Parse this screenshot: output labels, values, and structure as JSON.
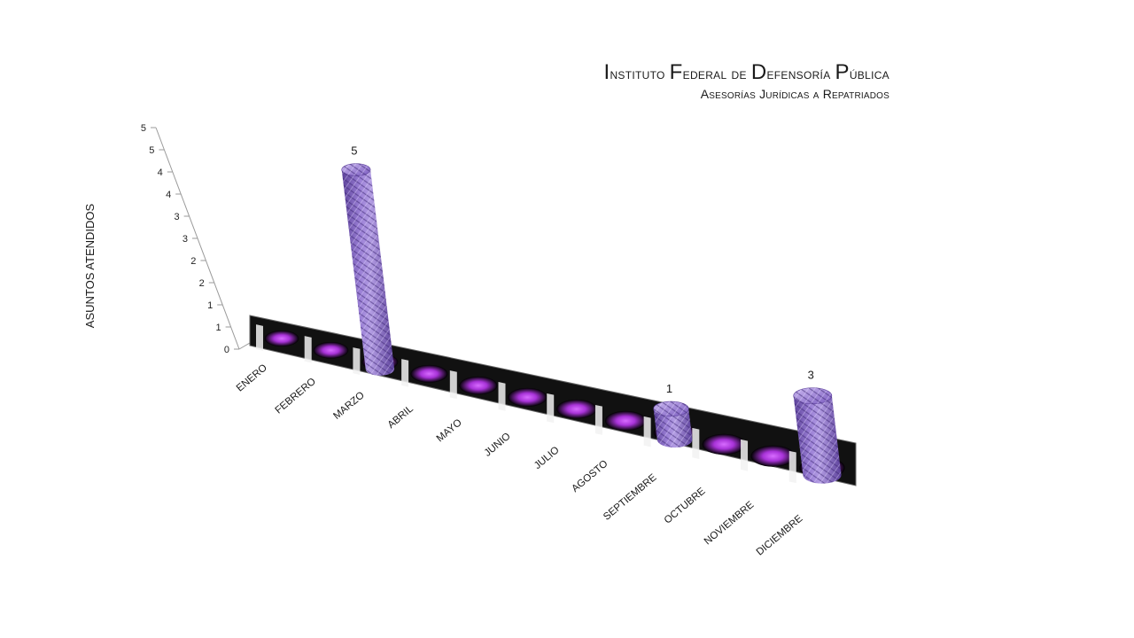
{
  "chart_data": {
    "type": "bar",
    "title": "Instituto Federal de Defensoría Pública",
    "subtitle": "Asesorías Jurídicas a Repatriados",
    "ylabel": "ASUNTOS ATENDIDOS",
    "xlabel": "",
    "categories": [
      "ENERO",
      "FEBRERO",
      "MARZO",
      "ABRIL",
      "MAYO",
      "JUNIO",
      "JULIO",
      "AGOSTO",
      "SEPTIEMBRE",
      "OCTUBRE",
      "NOVIEMBRE",
      "DICIEMBRE"
    ],
    "values": [
      0,
      0,
      5,
      0,
      0,
      0,
      0,
      0,
      1,
      0,
      0,
      3
    ],
    "data_labels": [
      "",
      "",
      "5",
      "",
      "",
      "",
      "",
      "",
      "1",
      "",
      "",
      "3"
    ],
    "y_tick_labels": [
      "0",
      "1",
      "1",
      "2",
      "2",
      "3",
      "3",
      "4",
      "4",
      "5",
      "5"
    ],
    "ylim": [
      0,
      5
    ],
    "grid": false,
    "legend": "none",
    "shape": "cylinder",
    "colors": {
      "bar": "#8a6bc4",
      "bar_dark": "#4a2f86",
      "bar_light": "#b9a2e6",
      "floor_glow": "#c94df0",
      "axis": "#9a9a9a"
    }
  }
}
